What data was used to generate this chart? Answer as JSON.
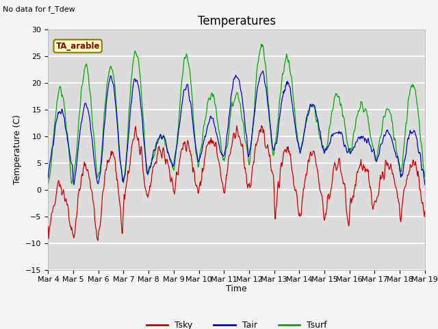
{
  "title": "Temperatures",
  "ylabel": "Temperature (C)",
  "xlabel": "Time",
  "ylim": [
    -15,
    30
  ],
  "date_labels": [
    "Mar 4",
    "Mar 5",
    "Mar 6",
    "Mar 7",
    "Mar 8",
    "Mar 9",
    "Mar 10",
    "Mar 11",
    "Mar 12",
    "Mar 13",
    "Mar 14",
    "Mar 15",
    "Mar 16",
    "Mar 17",
    "Mar 18",
    "Mar 19"
  ],
  "tsky_color": "#cc0000",
  "tair_color": "#0000cc",
  "tsurf_color": "#00aa00",
  "annotation_text": "No data for f_Tdew",
  "box_text": "TA_arable",
  "bg_color": "#dcdcdc",
  "fig_bg_color": "#f5f5f5",
  "title_fontsize": 12,
  "axis_fontsize": 9,
  "legend_fontsize": 9,
  "tick_fontsize": 8
}
